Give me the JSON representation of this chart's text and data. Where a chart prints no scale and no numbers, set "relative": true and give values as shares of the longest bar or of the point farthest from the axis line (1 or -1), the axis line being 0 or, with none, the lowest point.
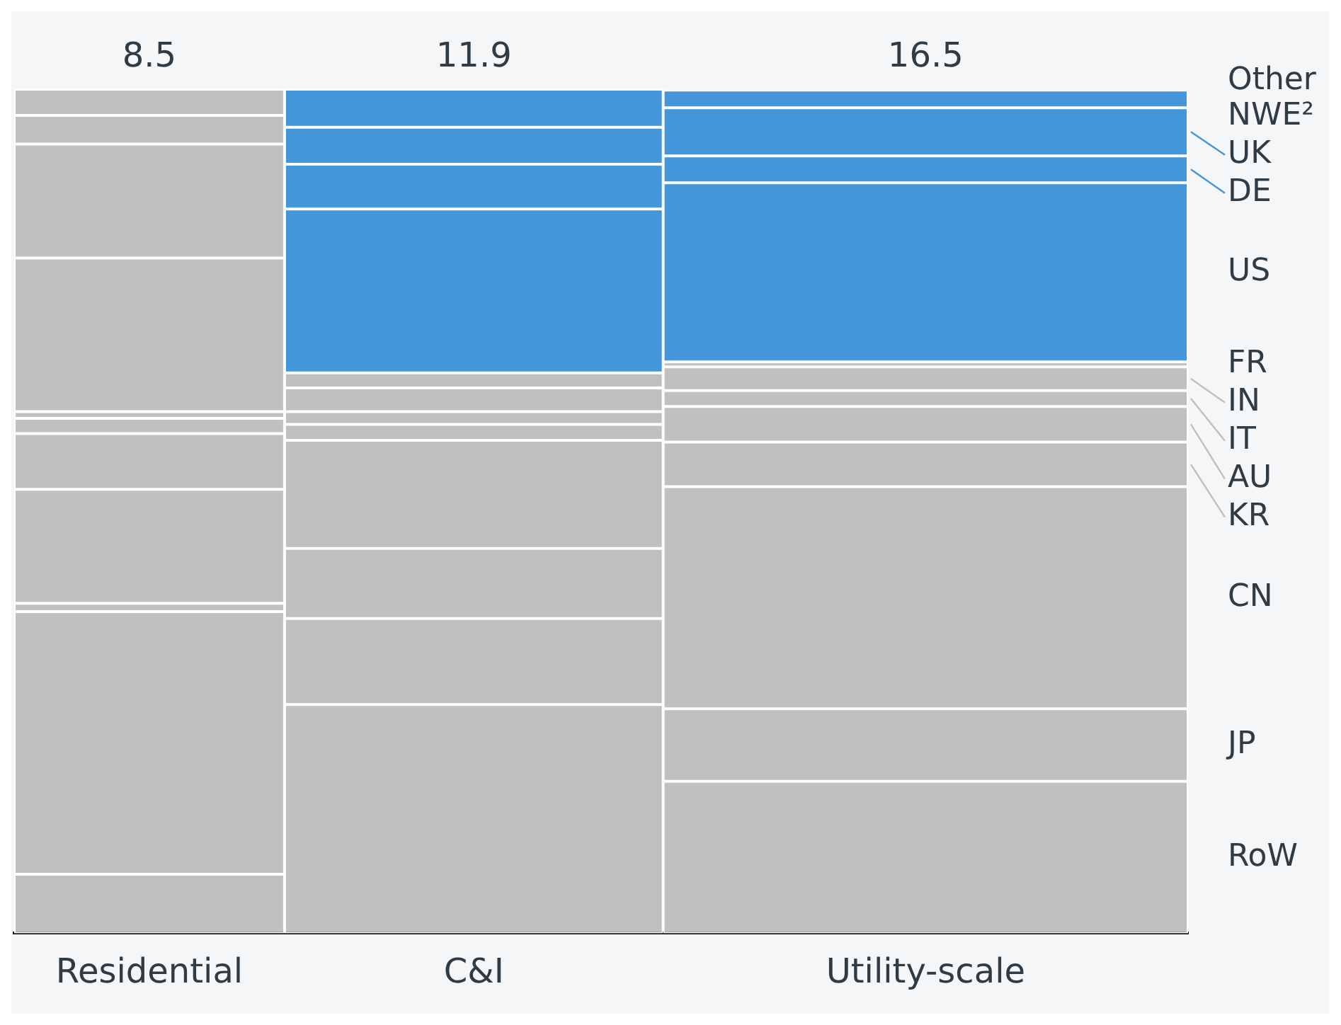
{
  "chart_data": {
    "type": "bar",
    "stacked": true,
    "relative": true,
    "categories": [
      "Residential",
      "C&I",
      "Utility-scale"
    ],
    "legend": "right",
    "annotations": [
      "8.5",
      "11.9",
      "16.5"
    ],
    "series": [
      {
        "name": "RoW",
        "colors": [
          "#c0c0c0",
          "#c0c0c0",
          "#c0c0c0"
        ],
        "values": [
          null,
          0.271,
          0.18
        ]
      },
      {
        "name": "JP",
        "colors": [
          "#c0c0c0",
          "#c0c0c0",
          "#c0c0c0"
        ],
        "values": [
          0.07,
          0.102,
          0.086
        ]
      },
      {
        "name": "CN",
        "colors": [
          "#c0c0c0",
          "#c0c0c0",
          "#c0c0c0"
        ],
        "values": [
          0.311,
          0.083,
          0.263
        ]
      },
      {
        "name": "KR",
        "colors": [
          "#c0c0c0",
          "#c0c0c0",
          "#c0c0c0"
        ],
        "values": [
          0.01,
          0.128,
          0.053
        ]
      },
      {
        "name": "AU",
        "colors": [
          "#c0c0c0",
          "#c0c0c0",
          "#c0c0c0"
        ],
        "values": [
          0.135,
          0.019,
          0.042
        ]
      },
      {
        "name": "IT",
        "colors": [
          "#c0c0c0",
          "#c0c0c0",
          "#c0c0c0"
        ],
        "values": [
          0.066,
          0.015,
          0.019
        ]
      },
      {
        "name": "IN",
        "colors": [
          "#c0c0c0",
          "#c0c0c0",
          "#c0c0c0"
        ],
        "values": [
          0.018,
          0.028,
          0.028
        ]
      },
      {
        "name": "FR",
        "colors": [
          "#c0c0c0",
          "#c0c0c0",
          "#c0c0c0"
        ],
        "values": [
          0.008,
          0.018,
          0.006
        ]
      },
      {
        "name": "US",
        "colors": [
          "#c0c0c0",
          "#4396d9",
          "#4396d9"
        ],
        "values": [
          0.182,
          0.194,
          0.212
        ]
      },
      {
        "name": "DE",
        "colors": [
          "#c0c0c0",
          "#4396d9",
          "#4396d9"
        ],
        "values": [
          0.135,
          0.053,
          0.032
        ]
      },
      {
        "name": "UK",
        "colors": [
          "#c0c0c0",
          "#4396d9",
          "#4396d9"
        ],
        "values": [
          0.034,
          0.044,
          0.057
        ]
      },
      {
        "name": "Other NWE²",
        "colors": [
          "#c0c0c0",
          "#4396d9",
          "#4396d9"
        ],
        "values": [
          0.031,
          0.045,
          0.021
        ]
      }
    ]
  }
}
